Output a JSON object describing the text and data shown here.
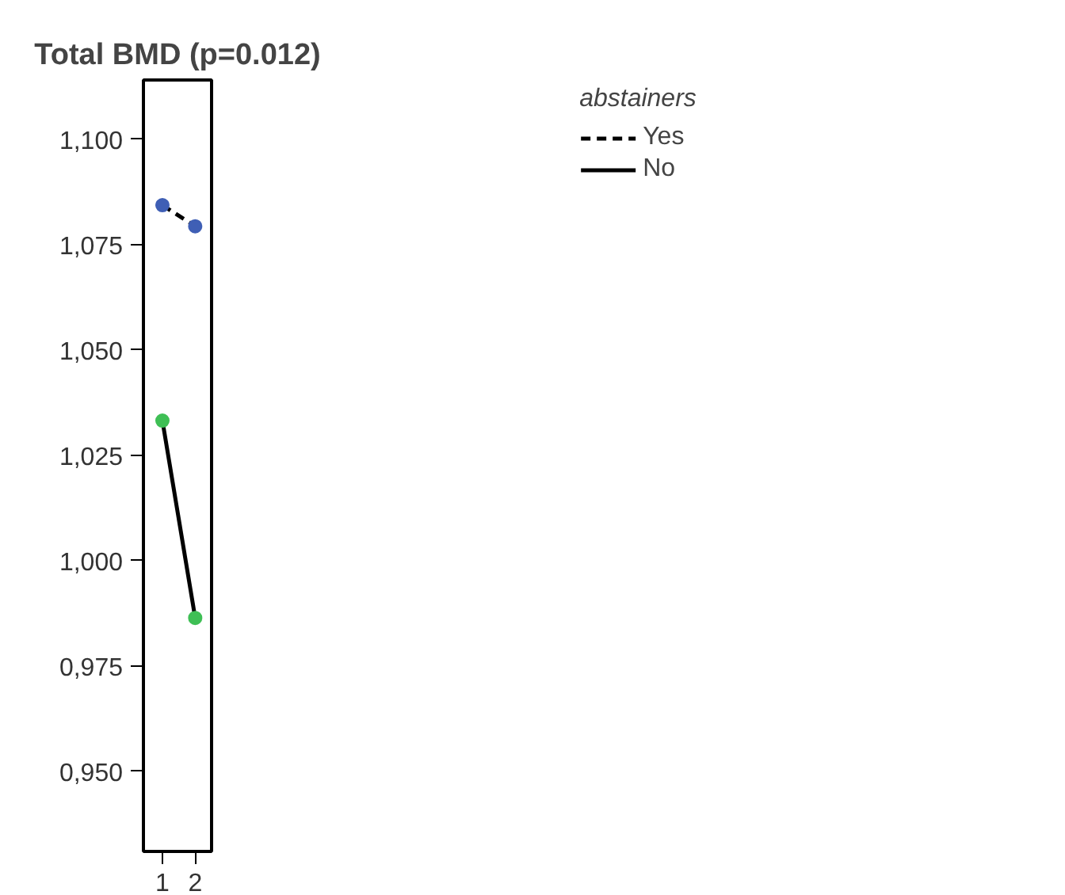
{
  "chart_data": {
    "type": "line",
    "title": "Total BMD (p=0.012)",
    "legend_title": "abstainers",
    "x": [
      1,
      2
    ],
    "xlim": [
      0.42,
      2.5
    ],
    "xticks": [
      1,
      2
    ],
    "ylim": [
      0.931,
      1.114
    ],
    "yticks": [
      {
        "value": 0.95,
        "label": "0,950"
      },
      {
        "value": 0.975,
        "label": "0,975"
      },
      {
        "value": 1.0,
        "label": "1,000"
      },
      {
        "value": 1.025,
        "label": "1,025"
      },
      {
        "value": 1.05,
        "label": "1,050"
      },
      {
        "value": 1.075,
        "label": "1,075"
      },
      {
        "value": 1.1,
        "label": "1,100"
      }
    ],
    "grid": false,
    "legend": "top right",
    "marker": "circle",
    "series": [
      {
        "name": "Yes",
        "color": "#3f5fb5",
        "line_style": "dashed",
        "values": [
          1.0843,
          1.0793
        ]
      },
      {
        "name": "No",
        "color": "#3fbf55",
        "line_style": "solid",
        "values": [
          1.0332,
          0.9864
        ]
      }
    ]
  }
}
